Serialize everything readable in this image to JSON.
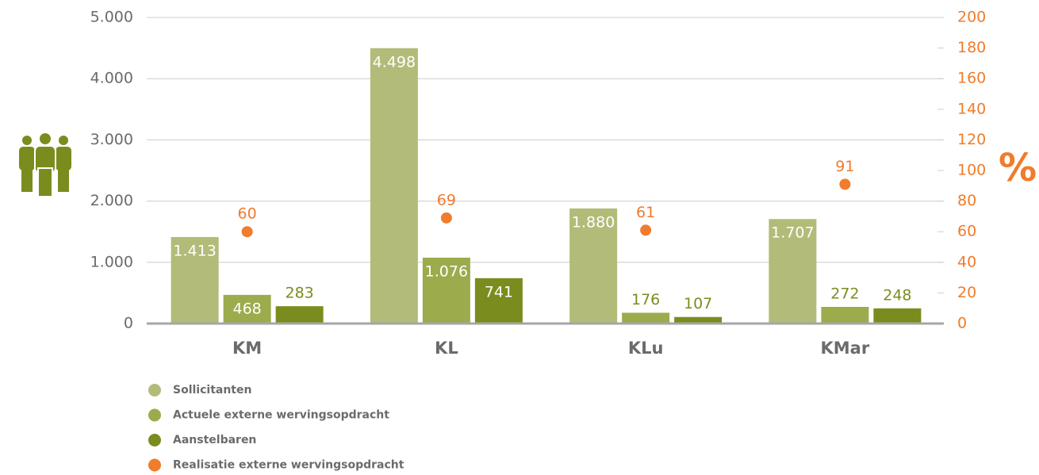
{
  "chart_data": {
    "type": "bar",
    "categories": [
      "KM",
      "KL",
      "KLu",
      "KMar"
    ],
    "series": [
      {
        "name": "Sollicitanten",
        "color": "#b3bb78",
        "values": [
          1413,
          4498,
          1880,
          1707
        ],
        "value_labels": [
          "1.413",
          "4.498",
          "1.880",
          "1.707"
        ]
      },
      {
        "name": "Actuele externe wervingsopdracht",
        "color": "#9cab4c",
        "values": [
          468,
          1076,
          176,
          272
        ],
        "value_labels": [
          "468",
          "1.076",
          "176",
          "272"
        ]
      },
      {
        "name": "Aanstelbaren",
        "color": "#7b8c1f",
        "values": [
          283,
          741,
          107,
          248
        ]
      },
      {
        "name": "Realisatie externe wervingsopdracht",
        "color": "#f07c2c",
        "type": "scatter",
        "axis": "y2",
        "values": [
          60,
          69,
          61,
          91
        ]
      }
    ],
    "ylim": [
      0,
      5000
    ],
    "yticks": [
      0,
      {
        "value": 1000,
        "label": "1.000"
      },
      {
        "value": 2000,
        "label": "2.000"
      },
      {
        "value": 3000,
        "label": "3.000"
      },
      {
        "value": 4000,
        "label": "4.000"
      },
      {
        "value": 5000,
        "label": "5.000"
      }
    ],
    "y2lim": [
      0,
      200
    ],
    "y2ticks": [
      0,
      20,
      40,
      60,
      80,
      100,
      120,
      140,
      160,
      180,
      200
    ],
    "y2label": "%",
    "grid": true,
    "legend": "bottom-left"
  }
}
